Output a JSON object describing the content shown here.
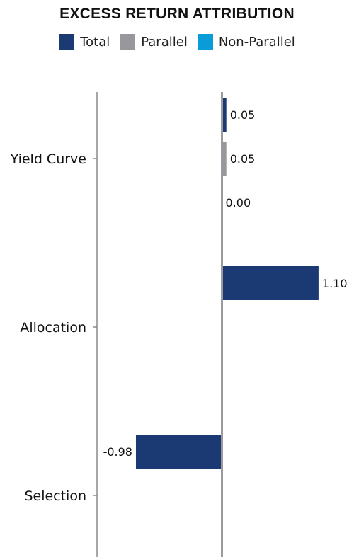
{
  "chart_data": {
    "type": "bar",
    "orientation": "horizontal",
    "title": "EXCESS RETURN ATTRIBUTION",
    "categories": [
      "Yield Curve",
      "Allocation",
      "Selection"
    ],
    "series": [
      {
        "name": "Total",
        "color": "#1b3a73",
        "values": [
          0.05,
          1.1,
          -0.98
        ]
      },
      {
        "name": "Parallel",
        "color": "#97979c",
        "values": [
          0.05,
          null,
          null
        ]
      },
      {
        "name": "Non-Parallel",
        "color": "#0a9bd9",
        "values": [
          0.0,
          null,
          null
        ]
      }
    ],
    "value_labels": {
      "Total": [
        "0.05",
        "1.10",
        "-0.98"
      ],
      "Parallel": [
        "0.05",
        "",
        ""
      ],
      "Non-Parallel": [
        "0.00",
        "",
        ""
      ]
    },
    "xlim": [
      -1.42,
      1.42
    ],
    "grid": false,
    "legend_position": "top"
  }
}
